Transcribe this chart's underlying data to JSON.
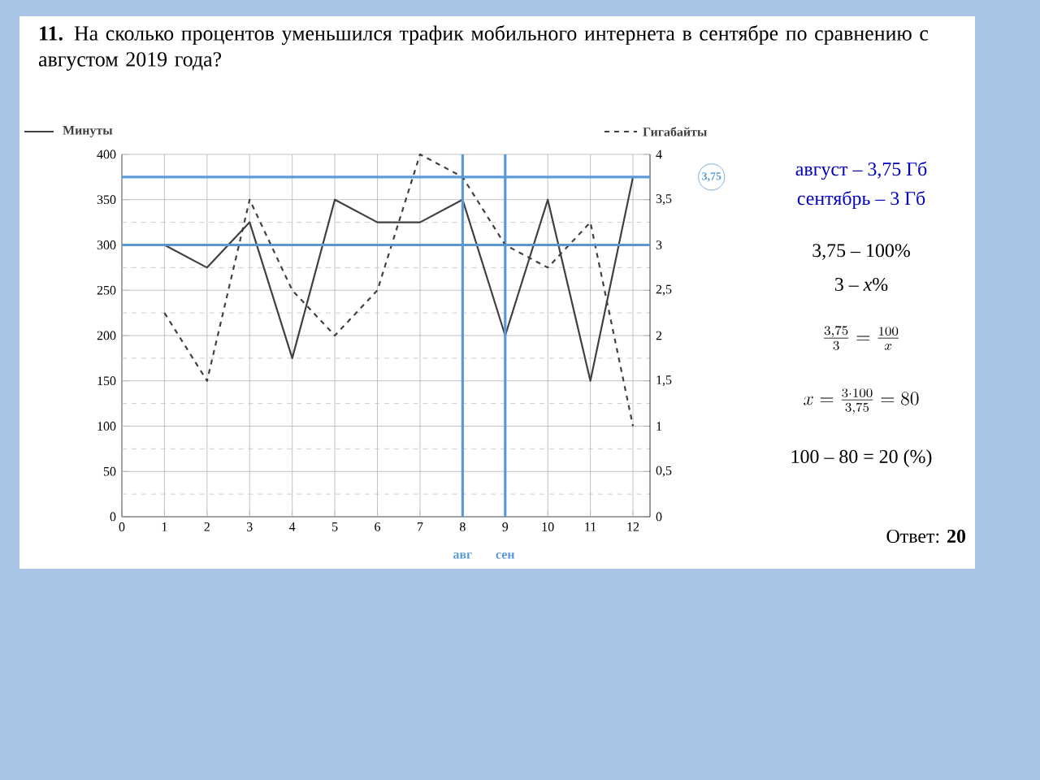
{
  "chart_data": {
    "type": "line",
    "title": "**11.** На сколько процентов уменьшился трафик мобильного интернета в сентябре по сравнению с августом 2019 года?",
    "x": [
      1,
      2,
      3,
      4,
      5,
      6,
      7,
      8,
      9,
      10,
      11,
      12
    ],
    "series": [
      {
        "name": "Минуты",
        "color": "#404040",
        "line_style": "solid",
        "values": [
          300,
          275,
          325,
          175,
          350,
          325,
          325,
          350,
          200,
          350,
          150,
          375
        ]
      },
      {
        "name": "Гигабайты",
        "color": "#404040",
        "line_style": "dashed",
        "axis": "y2",
        "values": [
          2.25,
          1.5,
          3.5,
          2.5,
          2,
          2.5,
          4,
          3.75,
          3,
          2.75,
          3.25,
          1
        ]
      }
    ],
    "xlim": [
      0,
      12.4
    ],
    "xticks": [
      0,
      1,
      2,
      3,
      4,
      5,
      6,
      7,
      8,
      9,
      10,
      11,
      12
    ],
    "ylim": [
      0,
      400
    ],
    "yticks": [
      0,
      50,
      100,
      150,
      200,
      250,
      300,
      350,
      400
    ],
    "y2lim": [
      0,
      4
    ],
    "y2ticks": [
      0,
      {
        "value": 0.5,
        "label": "0,5"
      },
      1,
      {
        "value": 1.5,
        "label": "1,5"
      },
      2,
      {
        "value": 2.5,
        "label": "2,5"
      },
      3,
      {
        "value": 3.5,
        "label": "3,5"
      },
      4
    ],
    "grid": true,
    "legend": "top",
    "ref_lines": [
      {
        "axis": "x",
        "value": 8,
        "label": "авг",
        "color": "#5b9bd5"
      },
      {
        "axis": "x",
        "value": 9,
        "label": "сен",
        "color": "#5a99d3"
      },
      {
        "axis": "y2",
        "value": 3.75,
        "label": "3,75",
        "color": "#5d9dd7"
      },
      {
        "axis": "y2",
        "value": 3,
        "color": "#5897d1"
      }
    ],
    "annotations": [
      "август – 3,75 Гб",
      "сентябрь – 3 Гб",
      "3,75 – 100%",
      "3 – *x*%",
      "\\frac{3{,}75}{3}=\\frac{100}{x}",
      "x=\\frac{3\\cdot 100}{3{,}75}=80",
      "100 – 80 = 20 (%)",
      "Ответ: **20**"
    ]
  }
}
